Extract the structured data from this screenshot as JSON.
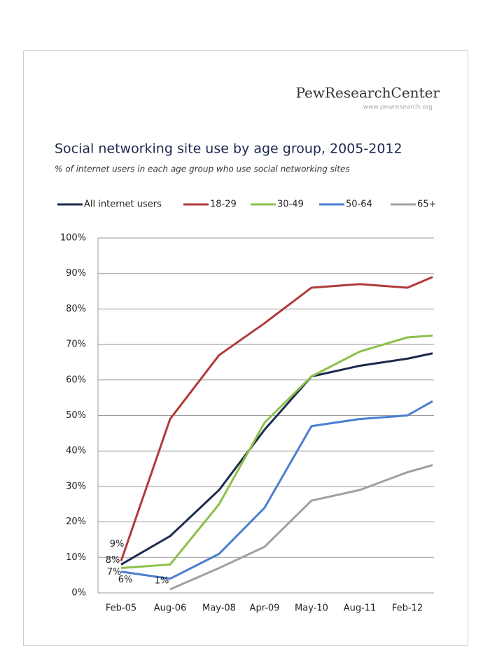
{
  "header": {
    "logo": "PewResearchCenter",
    "url": "www.pewresearch.org"
  },
  "chart_data": {
    "type": "line",
    "title": "Social networking site use by age group, 2005-2012",
    "subtitle": "% of internet users in each age group who use social networking sites",
    "categories": [
      "Feb-05",
      "Aug-06",
      "May-08",
      "Apr-09",
      "May-10",
      "Aug-11",
      "Feb-12",
      null
    ],
    "series": [
      {
        "name": "All internet users",
        "color": "#1b2a4e",
        "values": [
          8,
          16,
          29,
          46,
          61,
          64,
          66,
          67.5
        ],
        "value_labels": [
          "8%",
          null,
          null,
          null,
          null,
          null,
          null,
          null
        ]
      },
      {
        "name": "18-29",
        "color": "#b23a3a",
        "values": [
          9,
          49,
          67,
          76,
          86,
          87,
          86,
          89
        ],
        "value_labels": [
          "9%",
          null,
          null,
          null,
          null,
          null,
          null,
          null
        ]
      },
      {
        "name": "30-49",
        "color": "#8dc04b",
        "values": [
          7,
          8,
          25,
          48,
          61,
          68,
          72,
          72.5
        ],
        "value_labels": [
          "7%",
          null,
          null,
          null,
          null,
          null,
          null,
          null
        ]
      },
      {
        "name": "50-64",
        "color": "#4a7fd0",
        "values": [
          6,
          4,
          11,
          24,
          47,
          49,
          50,
          54
        ],
        "value_labels": [
          "6%",
          null,
          null,
          null,
          null,
          null,
          null,
          null
        ]
      },
      {
        "name": "65+",
        "color": "#a0a0a0",
        "values": [
          null,
          1,
          7,
          13,
          26,
          29,
          34,
          36
        ],
        "value_labels": [
          null,
          "1%",
          null,
          null,
          null,
          null,
          null,
          null
        ]
      }
    ],
    "ylim": [
      0,
      100
    ],
    "yticks": [
      {
        "value": 0,
        "label": "0%"
      },
      {
        "value": 10,
        "label": "10%"
      },
      {
        "value": 20,
        "label": "20%"
      },
      {
        "value": 30,
        "label": "30%"
      },
      {
        "value": 40,
        "label": "40%"
      },
      {
        "value": 50,
        "label": "50%"
      },
      {
        "value": 60,
        "label": "60%"
      },
      {
        "value": 70,
        "label": "70%"
      },
      {
        "value": 80,
        "label": "80%"
      },
      {
        "value": 90,
        "label": "90%"
      },
      {
        "value": 100,
        "label": "100%"
      }
    ],
    "grid": true,
    "legend": "top"
  }
}
